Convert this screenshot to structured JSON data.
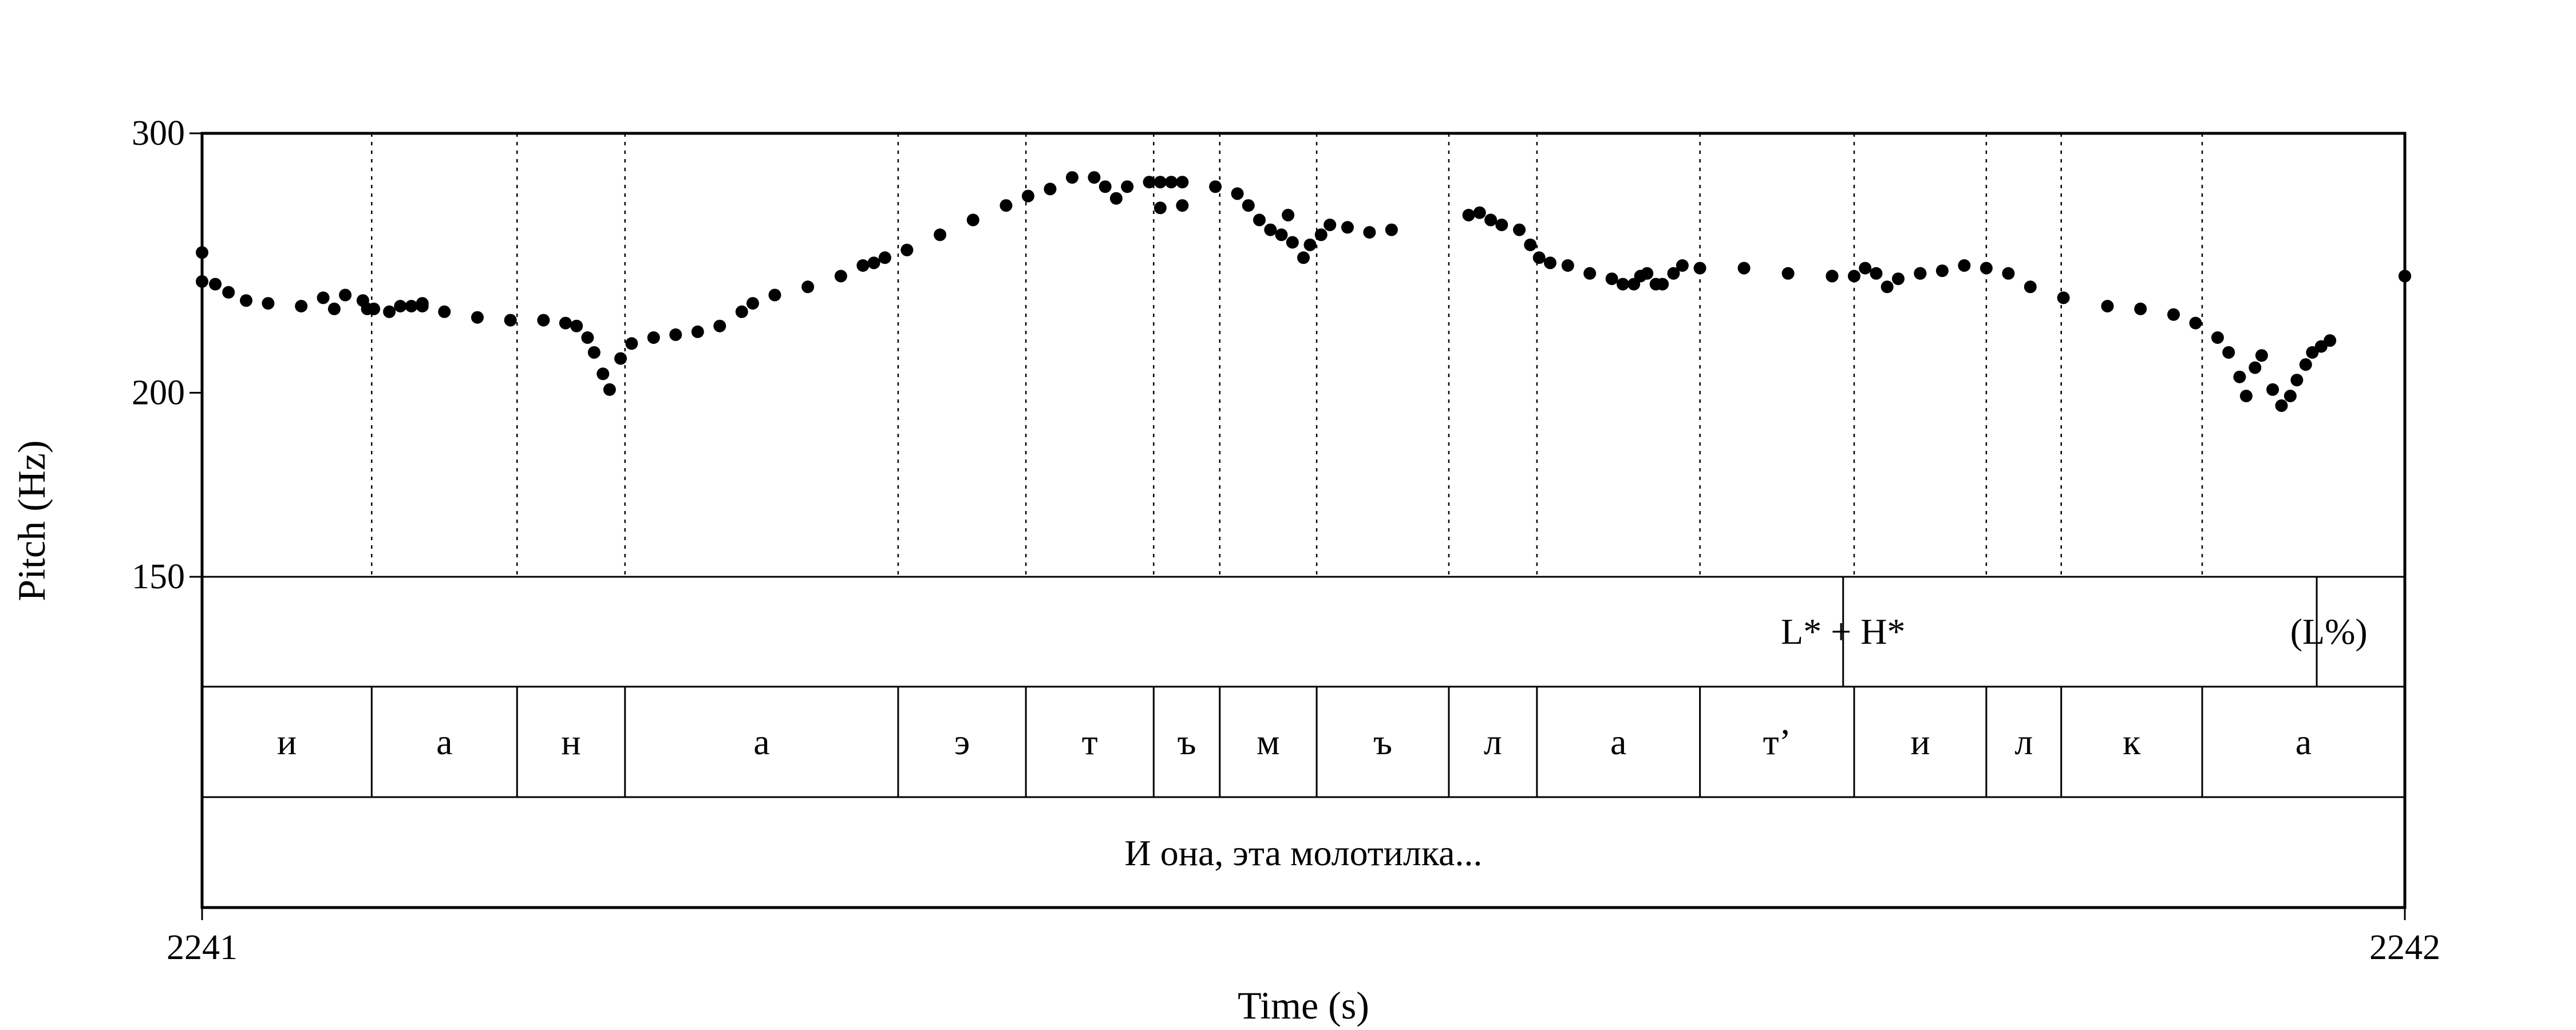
{
  "chart_data": {
    "type": "scatter",
    "title": "",
    "xlabel": "Time (s)",
    "ylabel": "Pitch (Hz)",
    "xlim": [
      2241,
      2242
    ],
    "ylim": [
      150,
      300
    ],
    "y_scale": "log",
    "x_tick_labels": [
      "2241",
      "2242"
    ],
    "y_tick_labels": [
      "150",
      "200",
      "300"
    ],
    "y_ticks": [
      150,
      200,
      300
    ],
    "pitch_contours": [
      [
        [
          2241.0,
          249
        ],
        [
          2241.0,
          238
        ],
        [
          2241.006,
          237
        ],
        [
          2241.012,
          234
        ],
        [
          2241.02,
          231
        ],
        [
          2241.03,
          230
        ],
        [
          2241.045,
          229
        ],
        [
          2241.06,
          228
        ],
        [
          2241.075,
          228
        ],
        [
          2241.09,
          229
        ],
        [
          2241.1,
          230
        ],
        [
          2241.055,
          232
        ],
        [
          2241.065,
          233
        ],
        [
          2241.073,
          231
        ],
        [
          2241.078,
          228
        ],
        [
          2241.085,
          227
        ],
        [
          2241.095,
          229
        ],
        [
          2241.1,
          229
        ],
        [
          2241.11,
          227
        ],
        [
          2241.125,
          225
        ],
        [
          2241.14,
          224
        ],
        [
          2241.155,
          224
        ],
        [
          2241.165,
          223
        ],
        [
          2241.17,
          222
        ],
        [
          2241.175,
          218
        ],
        [
          2241.178,
          213
        ],
        [
          2241.182,
          206
        ],
        [
          2241.185,
          201
        ],
        [
          2241.19,
          211
        ],
        [
          2241.195,
          216
        ],
        [
          2241.205,
          218
        ],
        [
          2241.215,
          219
        ],
        [
          2241.225,
          220
        ],
        [
          2241.235,
          222
        ],
        [
          2241.245,
          227
        ],
        [
          2241.25,
          230
        ],
        [
          2241.26,
          233
        ],
        [
          2241.275,
          236
        ],
        [
          2241.29,
          240
        ],
        [
          2241.305,
          245
        ],
        [
          2241.32,
          250
        ],
        [
          2241.335,
          256
        ],
        [
          2241.35,
          262
        ],
        [
          2241.365,
          268
        ],
        [
          2241.375,
          272
        ],
        [
          2241.385,
          275
        ],
        [
          2241.395,
          280
        ],
        [
          2241.3,
          244
        ],
        [
          2241.31,
          247
        ],
        [
          2241.405,
          280
        ],
        [
          2241.41,
          276
        ],
        [
          2241.415,
          271
        ],
        [
          2241.42,
          276
        ],
        [
          2241.43,
          278
        ],
        [
          2241.445,
          278
        ],
        [
          2241.46,
          276
        ],
        [
          2241.47,
          273
        ],
        [
          2241.475,
          268
        ],
        [
          2241.48,
          262
        ],
        [
          2241.485,
          258
        ],
        [
          2241.49,
          256
        ],
        [
          2241.493,
          264
        ],
        [
          2241.495,
          253
        ],
        [
          2241.5,
          247
        ],
        [
          2241.503,
          252
        ],
        [
          2241.508,
          256
        ],
        [
          2241.512,
          260
        ],
        [
          2241.52,
          259
        ],
        [
          2241.53,
          257
        ],
        [
          2241.54,
          258
        ]
      ],
      [
        [
          2241.435,
          278
        ],
        [
          2241.44,
          278
        ]
      ],
      [
        [
          2241.435,
          267
        ],
        [
          2241.445,
          268
        ]
      ],
      [
        [
          2241.575,
          264
        ],
        [
          2241.58,
          265
        ],
        [
          2241.585,
          262
        ],
        [
          2241.59,
          260
        ],
        [
          2241.598,
          258
        ],
        [
          2241.603,
          252
        ],
        [
          2241.607,
          247
        ],
        [
          2241.612,
          245
        ],
        [
          2241.62,
          244
        ],
        [
          2241.63,
          241
        ],
        [
          2241.64,
          239
        ],
        [
          2241.645,
          237
        ],
        [
          2241.65,
          237
        ],
        [
          2241.653,
          240
        ],
        [
          2241.656,
          241
        ],
        [
          2241.66,
          237
        ],
        [
          2241.663,
          237
        ],
        [
          2241.668,
          241
        ],
        [
          2241.672,
          244
        ],
        [
          2241.68,
          243
        ],
        [
          2241.7,
          243
        ],
        [
          2241.72,
          241
        ],
        [
          2241.74,
          240
        ],
        [
          2241.75,
          240
        ],
        [
          2241.755,
          243
        ],
        [
          2241.76,
          241
        ],
        [
          2241.765,
          236
        ],
        [
          2241.77,
          239
        ],
        [
          2241.78,
          241
        ],
        [
          2241.79,
          242
        ],
        [
          2241.8,
          244
        ],
        [
          2241.81,
          243
        ],
        [
          2241.82,
          241
        ],
        [
          2241.83,
          236
        ],
        [
          2241.845,
          232
        ],
        [
          2241.865,
          229
        ],
        [
          2241.88,
          228
        ],
        [
          2241.895,
          226
        ],
        [
          2241.905,
          223
        ],
        [
          2241.915,
          218
        ],
        [
          2241.92,
          213
        ],
        [
          2241.925,
          205
        ],
        [
          2241.928,
          199
        ],
        [
          2241.932,
          208
        ],
        [
          2241.935,
          212
        ],
        [
          2241.94,
          201
        ],
        [
          2241.944,
          196
        ],
        [
          2241.948,
          199
        ],
        [
          2241.951,
          204
        ],
        [
          2241.955,
          209
        ],
        [
          2241.958,
          213
        ],
        [
          2241.962,
          215
        ],
        [
          2241.966,
          217
        ]
      ],
      [
        [
          2241.74,
          240
        ],
        [
          2241.78,
          241
        ]
      ],
      [
        [
          2242.0,
          240
        ],
        [
          2242.0,
          240
        ]
      ]
    ],
    "tiers": [
      {
        "name": "tones",
        "labels": [
          {
            "text": "L* + H*",
            "x": 2241.745
          },
          {
            "text": "(L%)",
            "x": 2241.959
          }
        ],
        "marks": [
          2241.745,
          2241.96
        ]
      },
      {
        "name": "sounds",
        "boundaries": [
          2241.077,
          2241.143,
          2241.192,
          2241.316,
          2241.374,
          2241.432,
          2241.462,
          2241.506,
          2241.566,
          2241.606,
          2241.68,
          2241.75,
          2241.81,
          2241.844,
          2241.908
        ],
        "labels": [
          "и",
          "а",
          "н",
          "а",
          "э",
          "т",
          "ъ",
          "м",
          "ъ",
          "л",
          "а",
          "т’",
          "и",
          "л",
          "к",
          "а"
        ]
      },
      {
        "name": "phrase",
        "text": "И она, эта молотилка..."
      }
    ]
  }
}
